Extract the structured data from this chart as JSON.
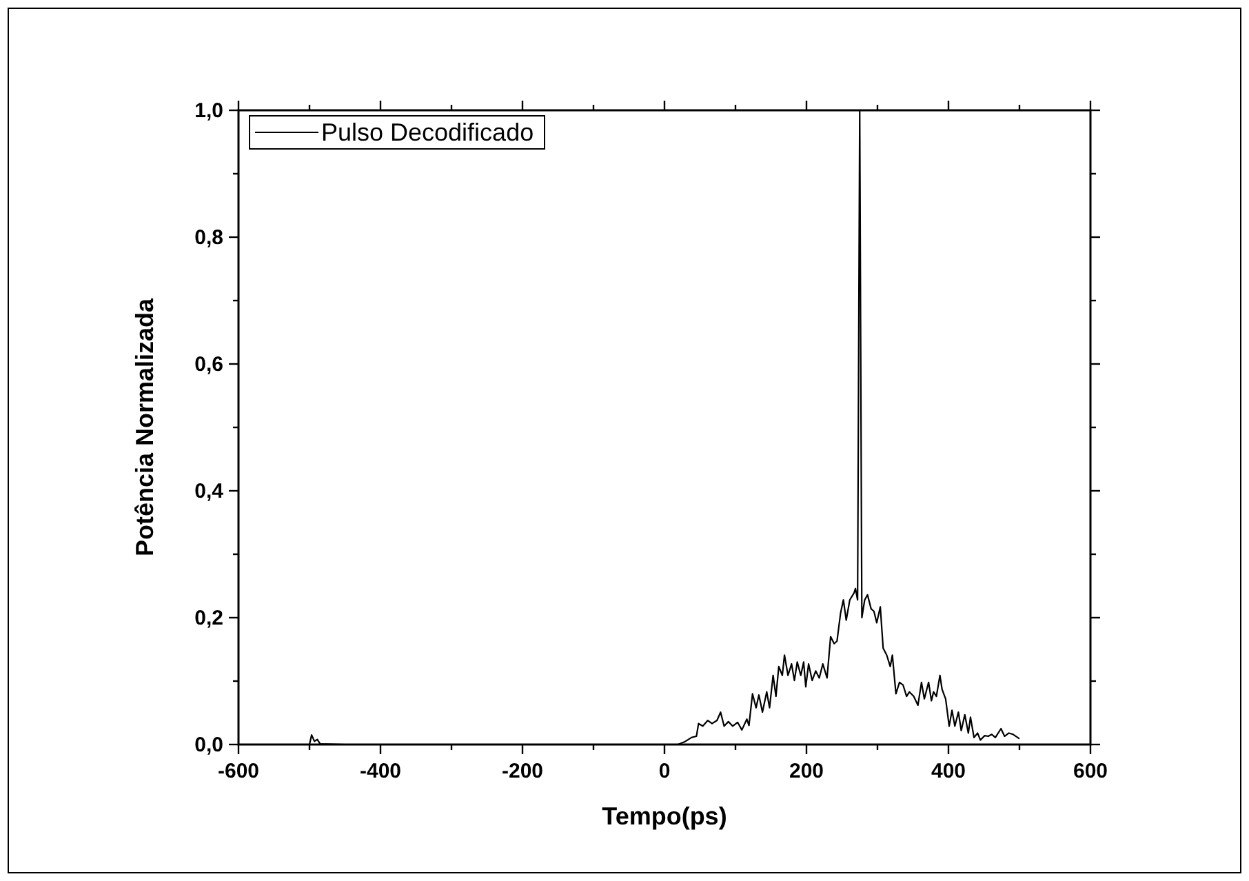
{
  "chart_data": {
    "type": "line",
    "xlabel": "Tempo(ps)",
    "ylabel": "Potência Normalizada",
    "xlim": [
      -600,
      600
    ],
    "ylim": [
      0,
      1
    ],
    "xticks": [
      -600,
      {
        "value": -500,
        "label": null
      },
      -400,
      {
        "value": -300,
        "label": null
      },
      -200,
      {
        "value": -100,
        "label": null
      },
      0,
      {
        "value": 100,
        "label": null
      },
      200,
      {
        "value": 300,
        "label": null
      },
      400,
      {
        "value": 500,
        "label": null
      },
      600
    ],
    "yticks": [
      {
        "value": 0,
        "label": "0,0"
      },
      {
        "value": 0.1,
        "label": null
      },
      {
        "value": 0.2,
        "label": "0,2"
      },
      {
        "value": 0.3,
        "label": null
      },
      {
        "value": 0.4,
        "label": "0,4"
      },
      {
        "value": 0.5,
        "label": null
      },
      {
        "value": 0.6,
        "label": "0,6"
      },
      {
        "value": 0.7,
        "label": null
      },
      {
        "value": 0.8,
        "label": "0,8"
      },
      {
        "value": 0.9,
        "label": null
      },
      {
        "value": 1,
        "label": "1,0"
      }
    ],
    "legend": "top left",
    "grid": false,
    "marker": "none",
    "line_style": "solid",
    "series": [
      {
        "name": "Pulso Decodificado",
        "color": "#000000",
        "x": [
          -500,
          -497,
          -493,
          -489,
          -485,
          -450,
          0,
          19,
          28,
          38,
          45,
          48,
          54,
          61,
          67,
          74,
          79,
          84,
          90,
          96,
          103,
          109,
          116,
          119,
          124,
          129,
          133,
          138,
          144,
          148,
          153,
          157,
          161,
          166,
          169,
          174,
          179,
          183,
          187,
          192,
          196,
          199,
          203,
          208,
          213,
          218,
          223,
          229,
          234,
          239,
          243,
          248,
          252,
          256,
          261,
          267,
          269,
          272,
          275,
          278,
          282,
          286,
          291,
          295,
          299,
          304,
          308,
          313,
          318,
          321,
          326,
          331,
          336,
          341,
          345,
          351,
          357,
          362,
          366,
          372,
          376,
          379,
          383,
          388,
          391,
          396,
          401,
          405,
          409,
          414,
          418,
          423,
          428,
          431,
          436,
          441,
          445,
          451,
          456,
          461,
          466,
          474,
          479,
          485,
          491,
          500
        ],
        "values": [
          0,
          0.015,
          0.005,
          0.008,
          0.001,
          0,
          0,
          0,
          0.004,
          0.011,
          0.013,
          0.033,
          0.029,
          0.038,
          0.033,
          0.038,
          0.051,
          0.029,
          0.036,
          0.029,
          0.035,
          0.023,
          0.04,
          0.03,
          0.08,
          0.058,
          0.078,
          0.051,
          0.083,
          0.058,
          0.109,
          0.076,
          0.123,
          0.109,
          0.141,
          0.109,
          0.127,
          0.101,
          0.13,
          0.109,
          0.13,
          0.091,
          0.127,
          0.101,
          0.116,
          0.105,
          0.127,
          0.105,
          0.17,
          0.159,
          0.163,
          0.207,
          0.228,
          0.196,
          0.228,
          0.239,
          0.246,
          0.228,
          1,
          0.2,
          0.228,
          0.236,
          0.214,
          0.21,
          0.192,
          0.217,
          0.152,
          0.141,
          0.123,
          0.141,
          0.08,
          0.098,
          0.094,
          0.076,
          0.083,
          0.076,
          0.062,
          0.098,
          0.072,
          0.098,
          0.069,
          0.083,
          0.076,
          0.109,
          0.087,
          0.072,
          0.029,
          0.054,
          0.029,
          0.051,
          0.022,
          0.047,
          0.018,
          0.043,
          0.011,
          0.018,
          0.007,
          0.014,
          0.013,
          0.016,
          0.011,
          0.025,
          0.013,
          0.018,
          0.016,
          0.009
        ]
      }
    ]
  }
}
